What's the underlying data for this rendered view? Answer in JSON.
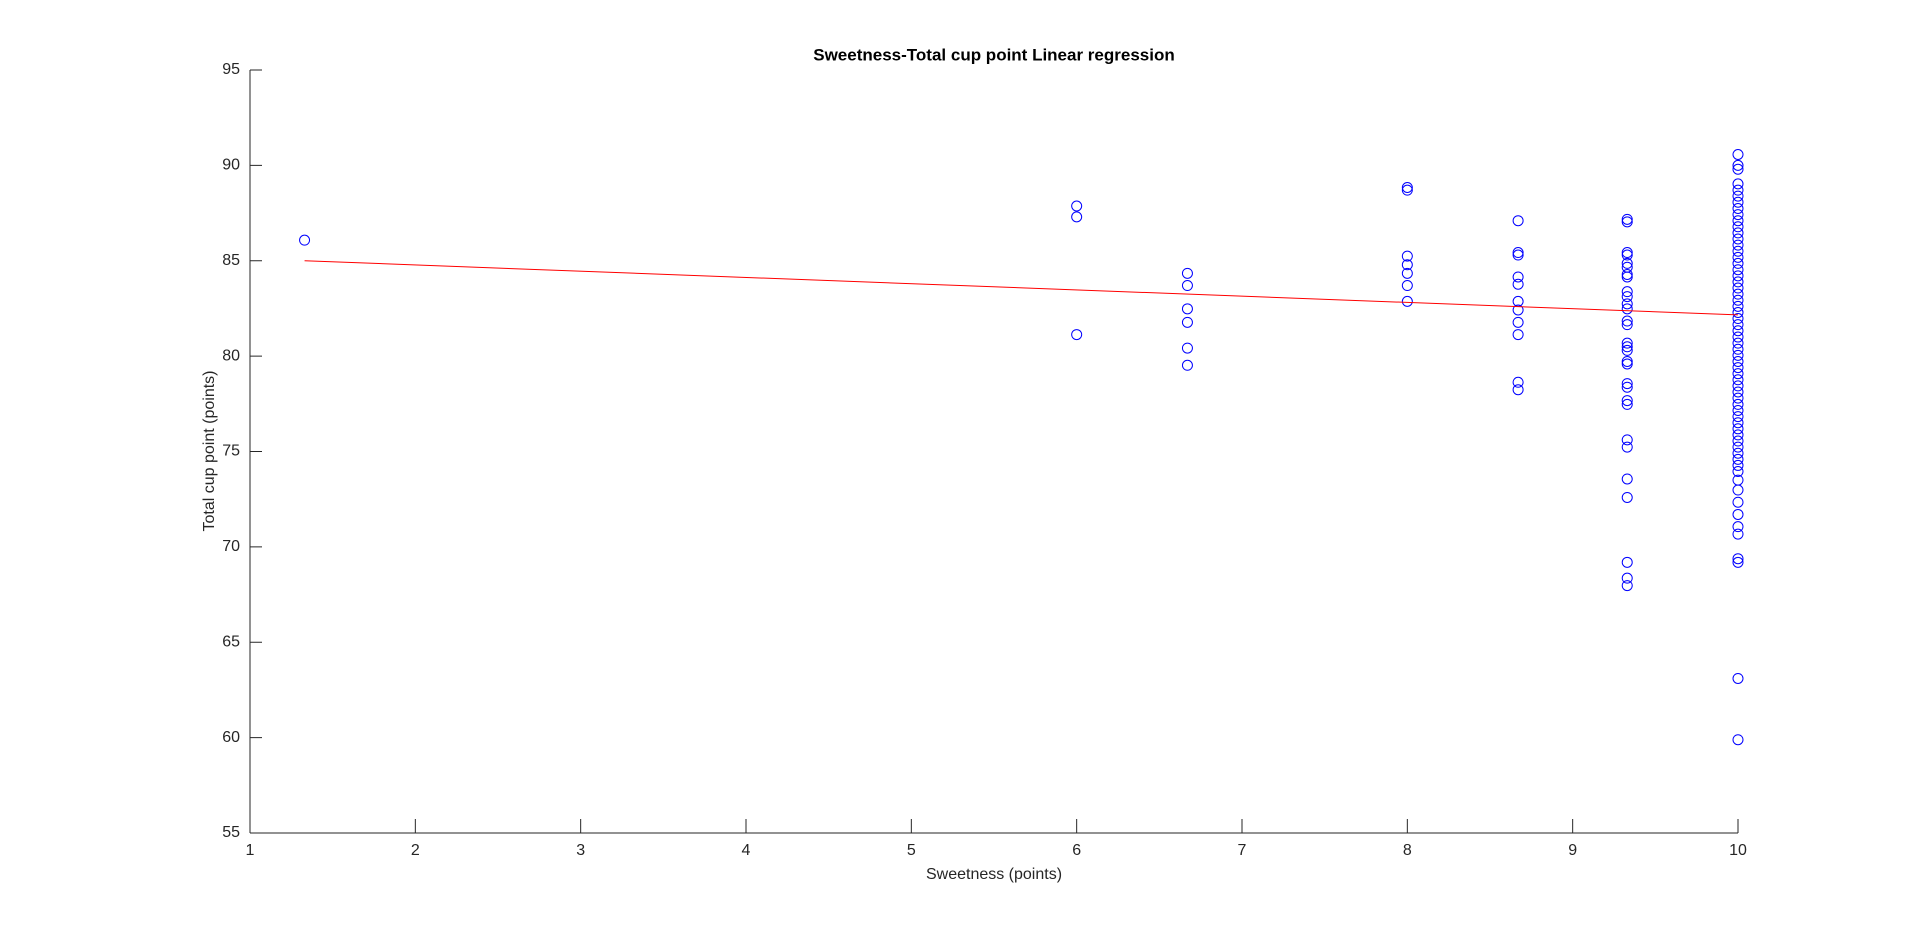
{
  "chart_data": {
    "type": "scatter",
    "title": "Sweetness-Total cup point Linear regression",
    "xlabel": "Sweetness (points)",
    "ylabel": "Total cup point (points)",
    "xlim": [
      1,
      10
    ],
    "xticks": [
      1,
      2,
      3,
      4,
      5,
      6,
      7,
      8,
      9,
      10
    ],
    "ylim": [
      55,
      95
    ],
    "yticks": [
      55,
      60,
      65,
      70,
      75,
      80,
      85,
      90,
      95
    ],
    "grid": false,
    "series": [
      {
        "type": "scatter",
        "color": "#0000ff",
        "x": [
          1.33,
          6,
          6,
          6,
          6.67,
          6.67,
          6.67,
          6.67,
          6.67,
          6.67,
          8,
          8,
          8,
          8,
          8,
          8,
          8,
          8.67,
          8.67,
          8.67,
          8.67,
          8.67,
          8.67,
          8.67,
          8.67,
          8.67,
          8.67,
          8.67,
          9.33,
          9.33,
          9.33,
          9.33,
          9.33,
          9.33,
          9.33,
          9.33,
          9.33,
          9.33,
          9.33,
          9.33,
          9.33,
          9.33,
          9.33,
          9.33,
          9.33,
          9.33,
          9.33,
          9.33,
          9.33,
          9.33,
          9.33,
          9.33,
          9.33,
          9.33,
          9.33,
          9.33,
          9.33,
          9.33,
          10,
          10,
          10,
          10,
          10,
          10,
          10,
          10,
          10,
          10,
          10,
          10,
          10,
          10,
          10,
          10,
          10,
          10,
          10,
          10,
          10,
          10,
          10,
          10,
          10,
          10,
          10,
          10,
          10,
          10,
          10,
          10,
          10,
          10,
          10,
          10,
          10,
          10,
          10,
          10,
          10,
          10,
          10,
          10,
          10,
          10,
          10,
          10,
          10,
          10,
          10,
          10,
          10,
          10,
          10,
          10,
          10,
          10,
          10,
          10,
          10
        ],
        "values": [
          86.08,
          87.87,
          87.3,
          81.13,
          84.34,
          83.7,
          82.48,
          81.77,
          80.42,
          79.52,
          88.84,
          88.7,
          85.24,
          84.79,
          84.34,
          83.7,
          82.87,
          87.1,
          85.43,
          85.3,
          84.15,
          83.77,
          82.87,
          82.42,
          81.77,
          81.13,
          78.63,
          78.24,
          87.17,
          87.04,
          85.43,
          85.3,
          84.86,
          84.66,
          84.28,
          84.15,
          83.38,
          83.12,
          82.74,
          82.48,
          81.84,
          81.65,
          80.68,
          80.49,
          80.3,
          79.72,
          79.59,
          78.56,
          78.37,
          77.67,
          77.47,
          75.61,
          75.23,
          73.56,
          72.59,
          69.19,
          68.36,
          67.97,
          90.57,
          90.0,
          89.8,
          89.03,
          88.7,
          88.39,
          88.07,
          87.74,
          87.42,
          87.1,
          86.78,
          86.46,
          86.14,
          85.82,
          85.5,
          85.18,
          84.86,
          84.53,
          84.21,
          83.89,
          83.57,
          83.25,
          82.93,
          82.61,
          82.29,
          81.97,
          81.65,
          81.33,
          81.0,
          80.68,
          80.36,
          80.04,
          79.72,
          79.4,
          79.08,
          78.76,
          78.44,
          78.12,
          77.8,
          77.47,
          77.15,
          76.83,
          76.51,
          76.19,
          75.87,
          75.55,
          75.23,
          74.91,
          74.59,
          74.27,
          73.95,
          73.5,
          72.98,
          72.34,
          71.7,
          71.06,
          70.67,
          69.38,
          69.19,
          63.1,
          59.89
        ]
      },
      {
        "type": "line",
        "color": "#ff0000",
        "x": [
          1.33,
          10
        ],
        "values": [
          85.0,
          82.16
        ]
      }
    ]
  }
}
